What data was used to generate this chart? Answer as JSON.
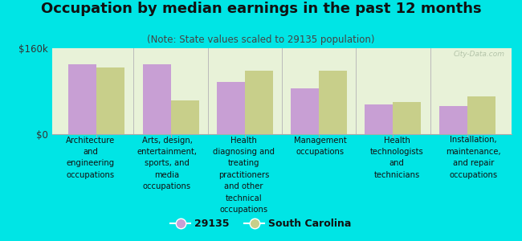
{
  "title": "Occupation by median earnings in the past 12 months",
  "subtitle": "(Note: State values scaled to 29135 population)",
  "categories": [
    "Architecture\nand\nengineering\noccupations",
    "Arts, design,\nentertainment,\nsports, and\nmedia\noccupations",
    "Health\ndiagnosing and\ntreating\npractitioners\nand other\ntechnical\noccupations",
    "Management\noccupations",
    "Health\ntechnologists\nand\ntechnicians",
    "Installation,\nmaintenance,\nand repair\noccupations"
  ],
  "values_29135": [
    130000,
    130000,
    97000,
    85000,
    55000,
    52000
  ],
  "values_sc": [
    124000,
    62000,
    118000,
    118000,
    60000,
    70000
  ],
  "color_29135": "#c89fd4",
  "color_sc": "#c8cf8a",
  "ylim": [
    0,
    160000
  ],
  "yticks": [
    0,
    160000
  ],
  "ytick_labels": [
    "$0",
    "$160k"
  ],
  "legend_labels": [
    "29135",
    "South Carolina"
  ],
  "background_color": "#e8f2d8",
  "outer_background": "#00e5e5",
  "watermark": "City-Data.com",
  "bar_width": 0.38,
  "title_fontsize": 13,
  "subtitle_fontsize": 8.5,
  "axis_label_fontsize": 7.2
}
